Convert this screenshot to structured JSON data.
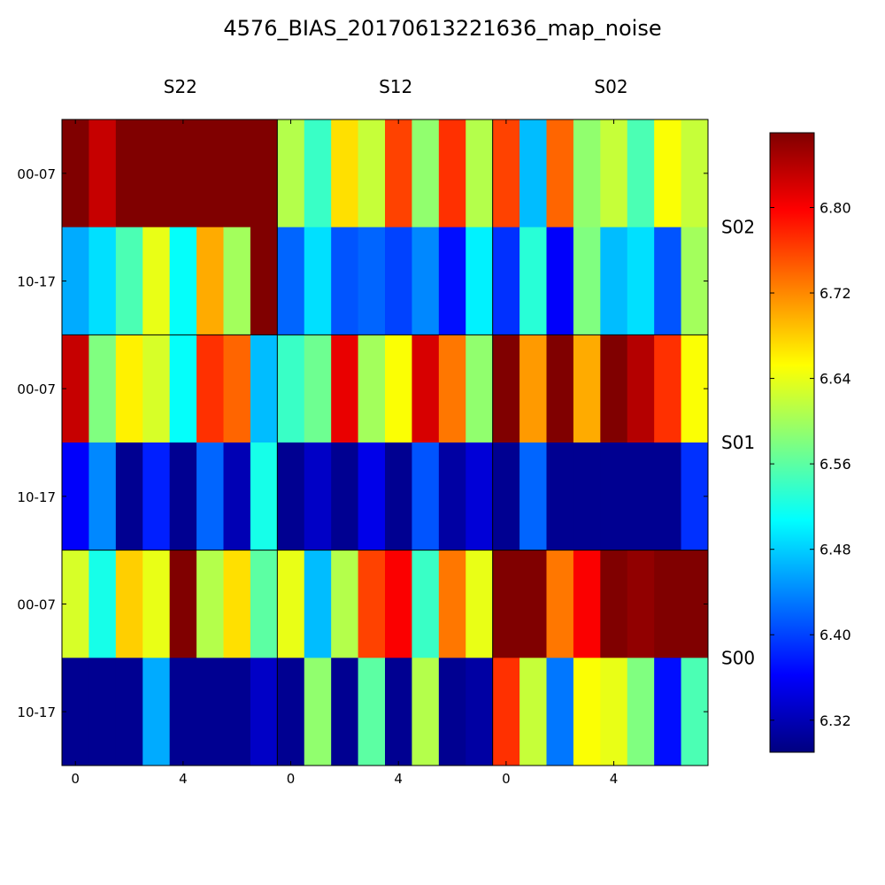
{
  "chart_data": {
    "type": "heatmap",
    "title": "4576_BIAS_20170613221636_map_noise",
    "column_panels": [
      "S22",
      "S12",
      "S02"
    ],
    "row_panels": [
      "S02",
      "S01",
      "S00"
    ],
    "row_tick_labels": [
      "00-07",
      "10-17"
    ],
    "col_tick_labels": [
      {
        "col": 0,
        "label": "0"
      },
      {
        "col": 4,
        "label": "4"
      }
    ],
    "colorbar": {
      "min": 6.29,
      "max": 6.87,
      "ticks": [
        6.32,
        6.4,
        6.48,
        6.56,
        6.64,
        6.72,
        6.8
      ],
      "tick_labels": [
        "6.32",
        "6.40",
        "6.48",
        "6.56",
        "6.64",
        "6.72",
        "6.80"
      ],
      "colormap": "jet"
    },
    "rows": [
      [
        6.87,
        6.83,
        6.87,
        6.87,
        6.87,
        6.87,
        6.87,
        6.87,
        6.61,
        6.54,
        6.67,
        6.62,
        6.76,
        6.59,
        6.77,
        6.61,
        6.76,
        6.47,
        6.74,
        6.59,
        6.62,
        6.55,
        6.65,
        6.62
      ],
      [
        6.46,
        6.49,
        6.55,
        6.64,
        6.51,
        6.7,
        6.6,
        6.87,
        6.42,
        6.49,
        6.41,
        6.42,
        6.4,
        6.44,
        6.37,
        6.5,
        6.39,
        6.53,
        6.36,
        6.58,
        6.47,
        6.49,
        6.41,
        6.6
      ],
      [
        6.83,
        6.58,
        6.66,
        6.63,
        6.51,
        6.77,
        6.74,
        6.47,
        6.54,
        6.57,
        6.81,
        6.6,
        6.65,
        6.82,
        6.73,
        6.59,
        6.87,
        6.71,
        6.87,
        6.7,
        6.87,
        6.84,
        6.77,
        6.65
      ],
      [
        6.36,
        6.44,
        6.3,
        6.38,
        6.3,
        6.42,
        6.32,
        6.52,
        6.3,
        6.33,
        6.3,
        6.35,
        6.3,
        6.41,
        6.31,
        6.34,
        6.3,
        6.42,
        6.3,
        6.3,
        6.3,
        6.3,
        6.3,
        6.39
      ],
      [
        6.63,
        6.52,
        6.68,
        6.64,
        6.87,
        6.61,
        6.67,
        6.56,
        6.64,
        6.47,
        6.61,
        6.76,
        6.8,
        6.54,
        6.73,
        6.64,
        6.87,
        6.87,
        6.73,
        6.8,
        6.87,
        6.86,
        6.87,
        6.87
      ],
      [
        6.3,
        6.3,
        6.3,
        6.46,
        6.3,
        6.3,
        6.3,
        6.33,
        6.3,
        6.59,
        6.3,
        6.56,
        6.3,
        6.61,
        6.3,
        6.31,
        6.77,
        6.62,
        6.43,
        6.65,
        6.64,
        6.58,
        6.37,
        6.55
      ]
    ]
  }
}
